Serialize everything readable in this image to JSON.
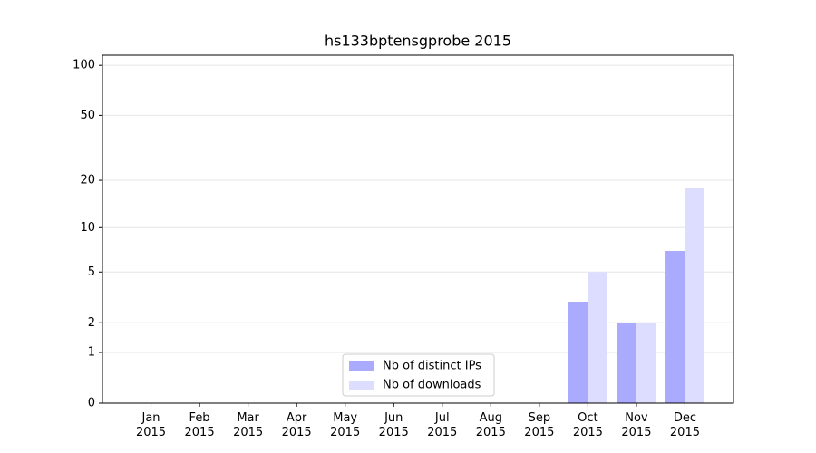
{
  "chart_data": {
    "type": "bar",
    "title": "hs133bptensgprobe 2015",
    "categories": [
      "Jan 2015",
      "Feb 2015",
      "Mar 2015",
      "Apr 2015",
      "May 2015",
      "Jun 2015",
      "Jul 2015",
      "Aug 2015",
      "Sep 2015",
      "Oct 2015",
      "Nov 2015",
      "Dec 2015"
    ],
    "series": [
      {
        "name": "Nb of distinct IPs",
        "color": "#aaaaff",
        "values": [
          0,
          0,
          0,
          0,
          0,
          0,
          0,
          0,
          0,
          3,
          2,
          7
        ]
      },
      {
        "name": "Nb of downloads",
        "color": "#ddddff",
        "values": [
          0,
          0,
          0,
          0,
          0,
          0,
          0,
          0,
          0,
          5,
          2,
          18
        ]
      }
    ],
    "y_scale": "log1p",
    "ylim": [
      0,
      115
    ],
    "yticks": [
      0,
      1,
      2,
      5,
      10,
      20,
      50,
      100
    ],
    "grid": true,
    "legend_position": "lower center"
  }
}
